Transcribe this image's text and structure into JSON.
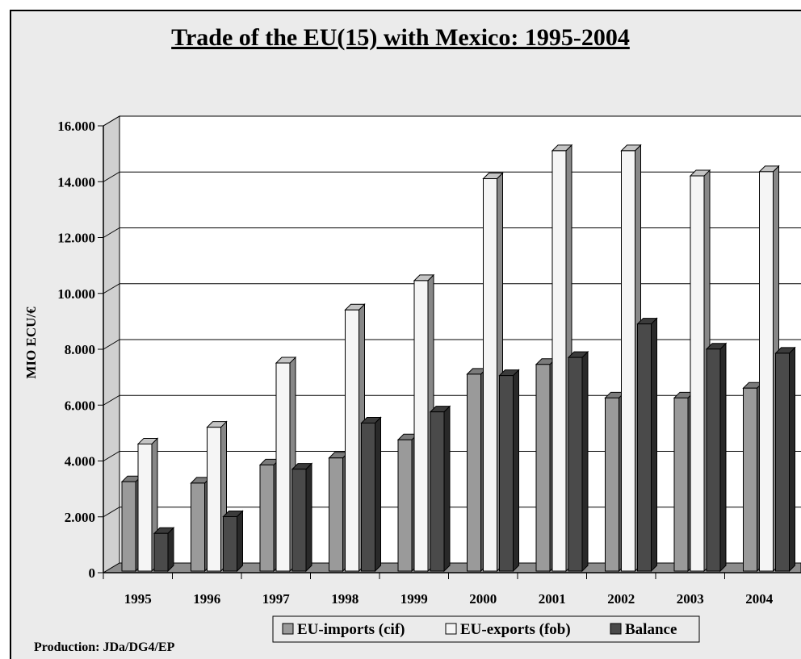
{
  "footer": {
    "production": "Production: JDa/DG4/EP"
  },
  "colors": {
    "imports": "#9a9a9a",
    "exports": "#f5f5f5",
    "balance": "#4a4a4a",
    "background": "#ebebeb"
  },
  "chart_data": {
    "type": "bar",
    "title": "Trade of the EU(15) with Mexico: 1995-2004",
    "xlabel": "",
    "ylabel": "MIO ECU/€",
    "ylim": [
      0,
      16000
    ],
    "yticks": [
      0,
      2000,
      4000,
      6000,
      8000,
      10000,
      12000,
      14000,
      16000
    ],
    "ytick_labels": [
      "0",
      "2.000",
      "4.000",
      "6.000",
      "8.000",
      "10.000",
      "12.000",
      "14.000",
      "16.000"
    ],
    "categories": [
      "1995",
      "1996",
      "1997",
      "1998",
      "1999",
      "2000",
      "2001",
      "2002",
      "2003",
      "2004"
    ],
    "grid": true,
    "legend_position": "bottom",
    "series": [
      {
        "name": "EU-imports (cif)",
        "color": "#9a9a9a",
        "values": [
          3200,
          3150,
          3800,
          4050,
          4700,
          7050,
          7400,
          6200,
          6200,
          6550
        ]
      },
      {
        "name": "EU-exports (fob)",
        "color": "#f5f5f5",
        "values": [
          4550,
          5150,
          7450,
          9350,
          10400,
          14050,
          15050,
          15050,
          14150,
          14300
        ]
      },
      {
        "name": "Balance",
        "color": "#4a4a4a",
        "values": [
          1350,
          1950,
          3650,
          5300,
          5700,
          7000,
          7650,
          8850,
          7950,
          7800
        ]
      }
    ]
  }
}
